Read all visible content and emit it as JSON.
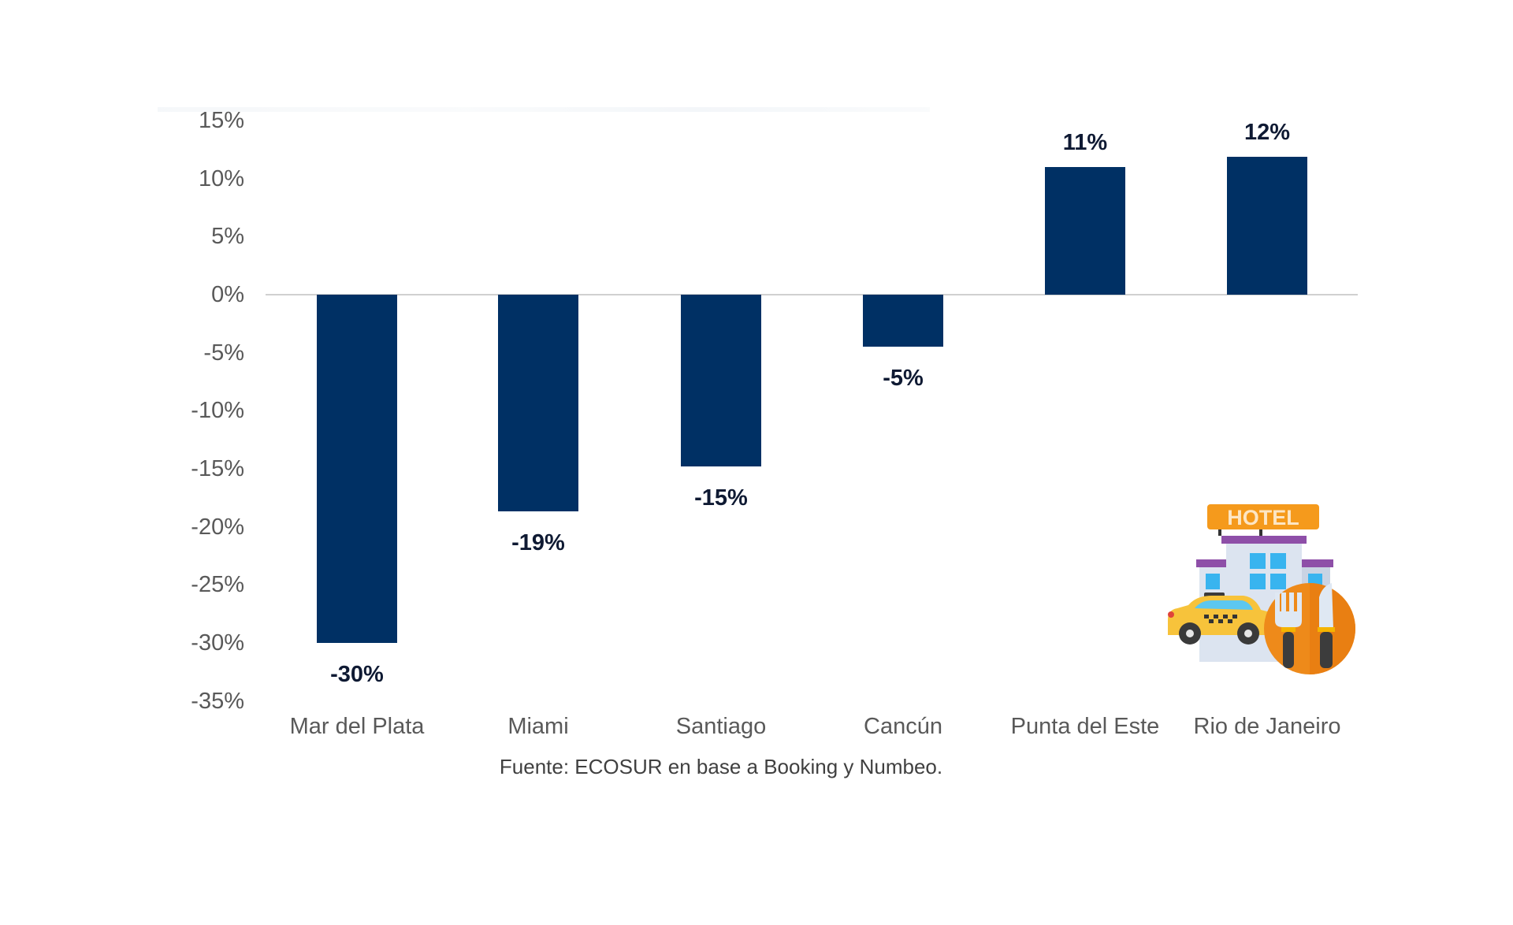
{
  "chart_data": {
    "type": "bar",
    "title": "",
    "xlabel": "",
    "ylabel": "",
    "categories": [
      "Mar del Plata",
      "Miami",
      "Santiago",
      "Cancún",
      "Punta del Este",
      "Rio de Janeiro"
    ],
    "values": [
      -30,
      -19,
      -15,
      -5,
      11,
      12
    ],
    "value_labels": [
      "-30%",
      "-19%",
      "-15%",
      "-5%",
      "11%",
      "12%"
    ],
    "estimated_exact_values": [
      -30.0,
      -18.7,
      -14.8,
      -4.5,
      11.0,
      11.9
    ],
    "yticks": [
      "15%",
      "10%",
      "5%",
      "0%",
      "-5%",
      "-10%",
      "-15%",
      "-20%",
      "-25%",
      "-30%",
      "-35%"
    ],
    "ylim": [
      -35,
      15
    ],
    "grid": false,
    "legend": null,
    "bar_color": "#003064",
    "label_color": "#0f1a33",
    "axis_text_color": "#595959",
    "caption": "Fuente: ECOSUR en base a Booking y Numbeo.",
    "illustration": [
      "hotel-icon",
      "taxi-icon",
      "restaurant-cutlery-icon"
    ]
  },
  "icon_sign": "HOTEL"
}
